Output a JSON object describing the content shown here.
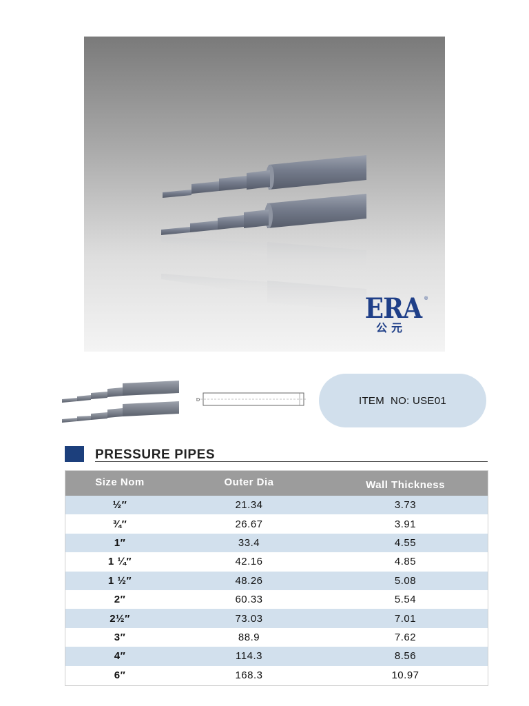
{
  "logo": {
    "brand": "ERA",
    "registered": "®",
    "chinese": "公元"
  },
  "item": {
    "label": "ITEM  NO: USE01"
  },
  "section": {
    "title": "PRESSURE PIPES"
  },
  "table": {
    "headers": [
      "Size  Nom",
      "Outer Dia",
      "Wall Thickness"
    ],
    "rows": [
      {
        "size": "½″",
        "outer_dia": "21.34",
        "wall": "3.73"
      },
      {
        "size": "¾″",
        "outer_dia": "26.67",
        "wall": "3.91"
      },
      {
        "size": "1″",
        "outer_dia": "33.4",
        "wall": "4.55"
      },
      {
        "size": "1 ¼″",
        "outer_dia": "42.16",
        "wall": "4.85"
      },
      {
        "size": "1 ½″",
        "outer_dia": "48.26",
        "wall": "5.08"
      },
      {
        "size": "2″",
        "outer_dia": "60.33",
        "wall": "5.54"
      },
      {
        "size": "2½″",
        "outer_dia": "73.03",
        "wall": "7.01"
      },
      {
        "size": "3″",
        "outer_dia": "88.9",
        "wall": "7.62"
      },
      {
        "size": "4″",
        "outer_dia": "114.3",
        "wall": "8.56"
      },
      {
        "size": "6″",
        "outer_dia": "168.3",
        "wall": "10.97"
      }
    ]
  },
  "drawing": {
    "dimension_label": "D"
  },
  "colors": {
    "brand_blue": "#1f3f88",
    "row_blue": "#d2e0ed",
    "header_gray": "#9c9c9c",
    "pill": "#d1dfec"
  }
}
